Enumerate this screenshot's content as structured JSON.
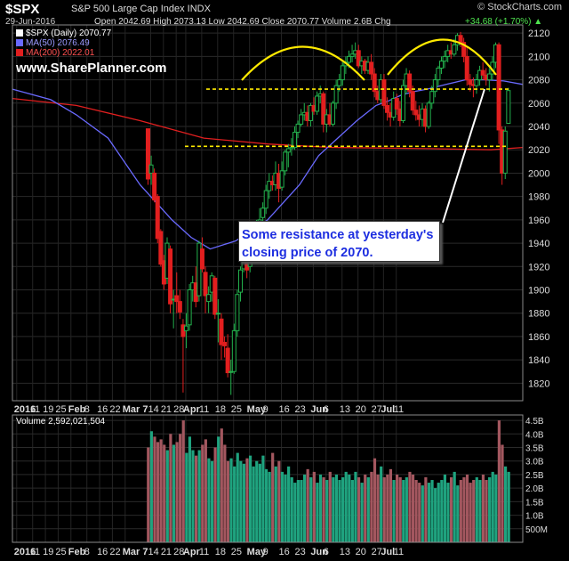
{
  "header": {
    "symbol": "$SPX",
    "description": "S&P 500 Large Cap Index  INDX",
    "date": "29-Jun-2016",
    "ohlc": "Open 2042.69  High 2073.13  Low 2042.69  Close 2070.77  Volume 2.6B  Chg",
    "change": "+34.68 (+1.70%) ▲",
    "brand": "© StockCharts.com"
  },
  "legend": {
    "price": "$SPX (Daily) 2070.77",
    "ma50": "MA(50) 2076.49",
    "ma200": "MA(200) 2022.01"
  },
  "watermark": "www.SharePlanner.com",
  "annotation": {
    "line1": "Some resistance at yesterday's",
    "line2": "closing price of 2070."
  },
  "volume_title": "Volume 2,592,021,504",
  "colors": {
    "up": "#23b14d",
    "down": "#e21f1f",
    "ma50": "#6a6aff",
    "ma200": "#e11f1f",
    "vol_up": "#1fa37f",
    "vol_down": "#a3575f",
    "guide": "#ffea00",
    "arc": "#ffea00"
  },
  "chart_data": [
    {
      "type": "candlestick",
      "title": "$SPX (Daily) 2070.77",
      "ylim": [
        1805,
        2127
      ],
      "yticks": [
        1820,
        1840,
        1860,
        1880,
        1900,
        1920,
        1940,
        1960,
        1980,
        2000,
        2020,
        2040,
        2060,
        2080,
        2100,
        2120
      ],
      "x_labels": [
        {
          "i": 0,
          "label": "2016",
          "bold": true
        },
        {
          "i": 5,
          "label": "11"
        },
        {
          "i": 9,
          "label": "19"
        },
        {
          "i": 13,
          "label": "25"
        },
        {
          "i": 17,
          "label": "Feb",
          "bold": true
        },
        {
          "i": 22,
          "label": "8"
        },
        {
          "i": 26,
          "label": "16"
        },
        {
          "i": 30,
          "label": "22"
        },
        {
          "i": 34,
          "label": "Mar 7",
          "bold": true
        },
        {
          "i": 42,
          "label": "14"
        },
        {
          "i": 46,
          "label": "21"
        },
        {
          "i": 50,
          "label": "28"
        },
        {
          "i": 53,
          "label": "Apr",
          "bold": true
        },
        {
          "i": 58,
          "label": "11"
        },
        {
          "i": 63,
          "label": "18"
        },
        {
          "i": 68,
          "label": "25"
        },
        {
          "i": 73,
          "label": "May",
          "bold": true
        },
        {
          "i": 78,
          "label": "9"
        },
        {
          "i": 83,
          "label": "16"
        },
        {
          "i": 88,
          "label": "23"
        },
        {
          "i": 93,
          "label": "Jun",
          "bold": true
        },
        {
          "i": 97,
          "label": "6"
        },
        {
          "i": 102,
          "label": "13"
        },
        {
          "i": 107,
          "label": "20"
        },
        {
          "i": 112,
          "label": "27"
        },
        {
          "i": 115,
          "label": "Jul",
          "bold": true
        },
        {
          "i": 119,
          "label": "11"
        }
      ],
      "candles": [
        [
          2038,
          2038,
          1990,
          1995
        ],
        [
          2000,
          2015,
          1990,
          2007
        ],
        [
          2000,
          2004,
          1975,
          1977
        ],
        [
          1980,
          1982,
          1940,
          1944
        ],
        [
          1950,
          1952,
          1920,
          1922
        ],
        [
          1925,
          1930,
          1900,
          1905
        ],
        [
          1910,
          1945,
          1905,
          1940
        ],
        [
          1935,
          1938,
          1880,
          1888
        ],
        [
          1892,
          1900,
          1867,
          1892
        ],
        [
          1895,
          1915,
          1880,
          1890
        ],
        [
          1890,
          1900,
          1875,
          1881
        ],
        [
          1870,
          1875,
          1812,
          1860
        ],
        [
          1865,
          1880,
          1850,
          1869
        ],
        [
          1870,
          1905,
          1865,
          1900
        ],
        [
          1900,
          1912,
          1890,
          1906
        ],
        [
          1906,
          1920,
          1885,
          1890
        ],
        [
          1895,
          1942,
          1890,
          1940
        ],
        [
          1935,
          1945,
          1915,
          1918
        ],
        [
          1915,
          1920,
          1880,
          1895
        ],
        [
          1890,
          1903,
          1880,
          1896
        ],
        [
          1898,
          1915,
          1890,
          1912
        ],
        [
          1910,
          1912,
          1875,
          1879
        ],
        [
          1880,
          1892,
          1855,
          1880
        ],
        [
          1875,
          1880,
          1840,
          1853
        ],
        [
          1855,
          1860,
          1842,
          1852
        ],
        [
          1850,
          1862,
          1825,
          1829
        ],
        [
          1830,
          1840,
          1810,
          1830
        ],
        [
          1830,
          1871,
          1828,
          1865
        ],
        [
          1865,
          1900,
          1860,
          1896
        ],
        [
          1898,
          1920,
          1890,
          1917
        ],
        [
          1918,
          1930,
          1915,
          1927
        ],
        [
          1925,
          1935,
          1910,
          1917
        ],
        [
          1920,
          1938,
          1915,
          1930
        ],
        [
          1930,
          1950,
          1925,
          1945
        ],
        [
          1945,
          1960,
          1935,
          1948
        ],
        [
          1950,
          1970,
          1945,
          1960
        ],
        [
          1962,
          1975,
          1955,
          1970
        ],
        [
          1970,
          1990,
          1965,
          1985
        ],
        [
          1985,
          2000,
          1978,
          1993
        ],
        [
          1993,
          1998,
          1985,
          1990
        ],
        [
          1990,
          2010,
          1985,
          2000
        ],
        [
          2000,
          2008,
          1975,
          1987
        ],
        [
          1988,
          2010,
          1985,
          2002
        ],
        [
          2002,
          2020,
          1998,
          2018
        ],
        [
          2018,
          2025,
          2005,
          2021
        ],
        [
          2021,
          2030,
          2015,
          2022
        ],
        [
          2022,
          2040,
          2020,
          2035
        ],
        [
          2035,
          2045,
          2030,
          2042
        ],
        [
          2042,
          2055,
          2040,
          2050
        ],
        [
          2050,
          2060,
          2045,
          2052
        ],
        [
          2052,
          2058,
          2040,
          2045
        ],
        [
          2045,
          2060,
          2040,
          2058
        ],
        [
          2058,
          2065,
          2050,
          2053
        ],
        [
          2053,
          2070,
          2050,
          2066
        ],
        [
          2066,
          2075,
          2060,
          2068
        ],
        [
          2068,
          2070,
          2035,
          2042
        ],
        [
          2042,
          2055,
          2035,
          2050
        ],
        [
          2050,
          2060,
          2040,
          2042
        ],
        [
          2042,
          2062,
          2040,
          2060
        ],
        [
          2060,
          2080,
          2055,
          2075
        ],
        [
          2075,
          2085,
          2070,
          2080
        ],
        [
          2080,
          2095,
          2075,
          2092
        ],
        [
          2092,
          2100,
          2085,
          2095
        ],
        [
          2095,
          2105,
          2090,
          2100
        ],
        [
          2100,
          2110,
          2095,
          2102
        ],
        [
          2102,
          2112,
          2098,
          2105
        ],
        [
          2105,
          2110,
          2090,
          2092
        ],
        [
          2092,
          2100,
          2085,
          2096
        ],
        [
          2096,
          2098,
          2085,
          2088
        ],
        [
          2088,
          2100,
          2085,
          2095
        ],
        [
          2095,
          2102,
          2080,
          2085
        ],
        [
          2085,
          2090,
          2065,
          2070
        ],
        [
          2070,
          2075,
          2060,
          2063
        ],
        [
          2063,
          2085,
          2060,
          2080
        ],
        [
          2080,
          2085,
          2055,
          2058
        ],
        [
          2058,
          2065,
          2045,
          2052
        ],
        [
          2052,
          2060,
          2040,
          2048
        ],
        [
          2048,
          2070,
          2045,
          2064
        ],
        [
          2064,
          2068,
          2050,
          2055
        ],
        [
          2055,
          2062,
          2040,
          2045
        ],
        [
          2045,
          2080,
          2043,
          2075
        ],
        [
          2075,
          2090,
          2068,
          2085
        ],
        [
          2085,
          2088,
          2065,
          2070
        ],
        [
          2070,
          2075,
          2050,
          2054
        ],
        [
          2054,
          2062,
          2045,
          2050
        ],
        [
          2050,
          2058,
          2040,
          2046
        ],
        [
          2046,
          2060,
          2040,
          2055
        ],
        [
          2055,
          2058,
          2035,
          2040
        ],
        [
          2040,
          2062,
          2038,
          2060
        ],
        [
          2060,
          2075,
          2055,
          2070
        ],
        [
          2070,
          2085,
          2065,
          2080
        ],
        [
          2080,
          2092,
          2075,
          2090
        ],
        [
          2090,
          2100,
          2085,
          2096
        ],
        [
          2096,
          2105,
          2090,
          2100
        ],
        [
          2100,
          2110,
          2095,
          2105
        ],
        [
          2105,
          2112,
          2098,
          2102
        ],
        [
          2102,
          2115,
          2100,
          2110
        ],
        [
          2110,
          2120,
          2105,
          2118
        ],
        [
          2118,
          2121,
          2108,
          2112
        ],
        [
          2112,
          2116,
          2095,
          2100
        ],
        [
          2100,
          2108,
          2075,
          2080
        ],
        [
          2080,
          2085,
          2070,
          2076
        ],
        [
          2076,
          2082,
          2065,
          2075
        ],
        [
          2075,
          2085,
          2068,
          2080
        ],
        [
          2080,
          2092,
          2075,
          2088
        ],
        [
          2088,
          2095,
          2080,
          2084
        ],
        [
          2084,
          2090,
          2075,
          2080
        ],
        [
          2080,
          2090,
          2070,
          2085
        ],
        [
          2085,
          2100,
          2080,
          2095
        ],
        [
          2095,
          2112,
          2090,
          2110
        ],
        [
          2110,
          2112,
          2025,
          2037
        ],
        [
          2037,
          2040,
          1990,
          2000
        ],
        [
          2000,
          2040,
          1995,
          2036
        ],
        [
          2042.69,
          2073.13,
          2042.69,
          2070.77
        ]
      ],
      "ma50": [
        [
          0,
          2072
        ],
        [
          12,
          2063
        ],
        [
          20,
          2050
        ],
        [
          30,
          2030
        ],
        [
          40,
          1990
        ],
        [
          50,
          1960
        ],
        [
          56,
          1945
        ],
        [
          62,
          1935
        ],
        [
          70,
          1942
        ],
        [
          80,
          1960
        ],
        [
          90,
          1990
        ],
        [
          96,
          2015
        ],
        [
          102,
          2030
        ],
        [
          108,
          2045
        ],
        [
          114,
          2058
        ],
        [
          118,
          2062
        ],
        [
          122,
          2067
        ],
        [
          126,
          2070
        ],
        [
          130,
          2072
        ],
        [
          136,
          2076
        ],
        [
          142,
          2080
        ],
        [
          148,
          2080
        ],
        [
          154,
          2079
        ],
        [
          160,
          2076
        ]
      ],
      "ma200": [
        [
          0,
          2064
        ],
        [
          20,
          2058
        ],
        [
          40,
          2045
        ],
        [
          60,
          2030
        ],
        [
          80,
          2025
        ],
        [
          100,
          2022
        ],
        [
          130,
          2021
        ],
        [
          150,
          2020
        ],
        [
          160,
          2022
        ]
      ],
      "resistance": 2072,
      "support": 2023
    },
    {
      "type": "bar",
      "title": "Volume 2,592,021,504",
      "unit": "billions",
      "ylim": [
        0,
        4.7
      ],
      "yticks": [
        {
          "v": 0.5,
          "label": "500M"
        },
        {
          "v": 1.0,
          "label": "1.0B"
        },
        {
          "v": 1.5,
          "label": "1.5B"
        },
        {
          "v": 2.0,
          "label": "2.0B"
        },
        {
          "v": 2.5,
          "label": "2.5B"
        },
        {
          "v": 3.0,
          "label": "3.0B"
        },
        {
          "v": 3.5,
          "label": "3.5B"
        },
        {
          "v": 4.0,
          "label": "4.0B"
        },
        {
          "v": 4.5,
          "label": "4.5B"
        }
      ],
      "values": [
        3.5,
        4.1,
        3.9,
        3.7,
        3.8,
        3.6,
        3.4,
        4.0,
        3.6,
        3.7,
        4.0,
        4.5,
        3.3,
        3.9,
        3.4,
        3.2,
        3.4,
        3.6,
        3.8,
        3.1,
        3.0,
        3.5,
        3.9,
        4.2,
        3.6,
        3.0,
        3.1,
        2.8,
        3.3,
        3.0,
        2.9,
        3.1,
        3.2,
        2.8,
        3.0,
        2.9,
        3.2,
        2.7,
        2.6,
        3.3,
        2.8,
        3.0,
        2.6,
        2.5,
        2.8,
        2.4,
        2.2,
        2.3,
        2.3,
        2.5,
        2.7,
        2.4,
        2.6,
        2.2,
        2.5,
        2.4,
        2.3,
        2.6,
        2.4,
        2.5,
        2.3,
        2.4,
        2.6,
        2.5,
        2.3,
        2.6,
        2.4,
        2.2,
        2.5,
        2.4,
        2.6,
        3.1,
        2.5,
        2.8,
        2.4,
        2.5,
        2.7,
        2.3,
        2.5,
        2.4,
        2.3,
        2.4,
        2.6,
        2.5,
        2.3,
        2.2,
        2.1,
        2.4,
        2.2,
        2.3,
        2.0,
        2.2,
        2.3,
        2.5,
        2.2,
        2.4,
        2.6,
        2.1,
        2.3,
        2.4,
        2.5,
        2.2,
        2.3,
        2.4,
        2.3,
        2.5,
        2.3,
        2.4,
        2.6,
        2.5,
        4.5,
        3.6,
        2.8,
        2.6
      ]
    }
  ]
}
